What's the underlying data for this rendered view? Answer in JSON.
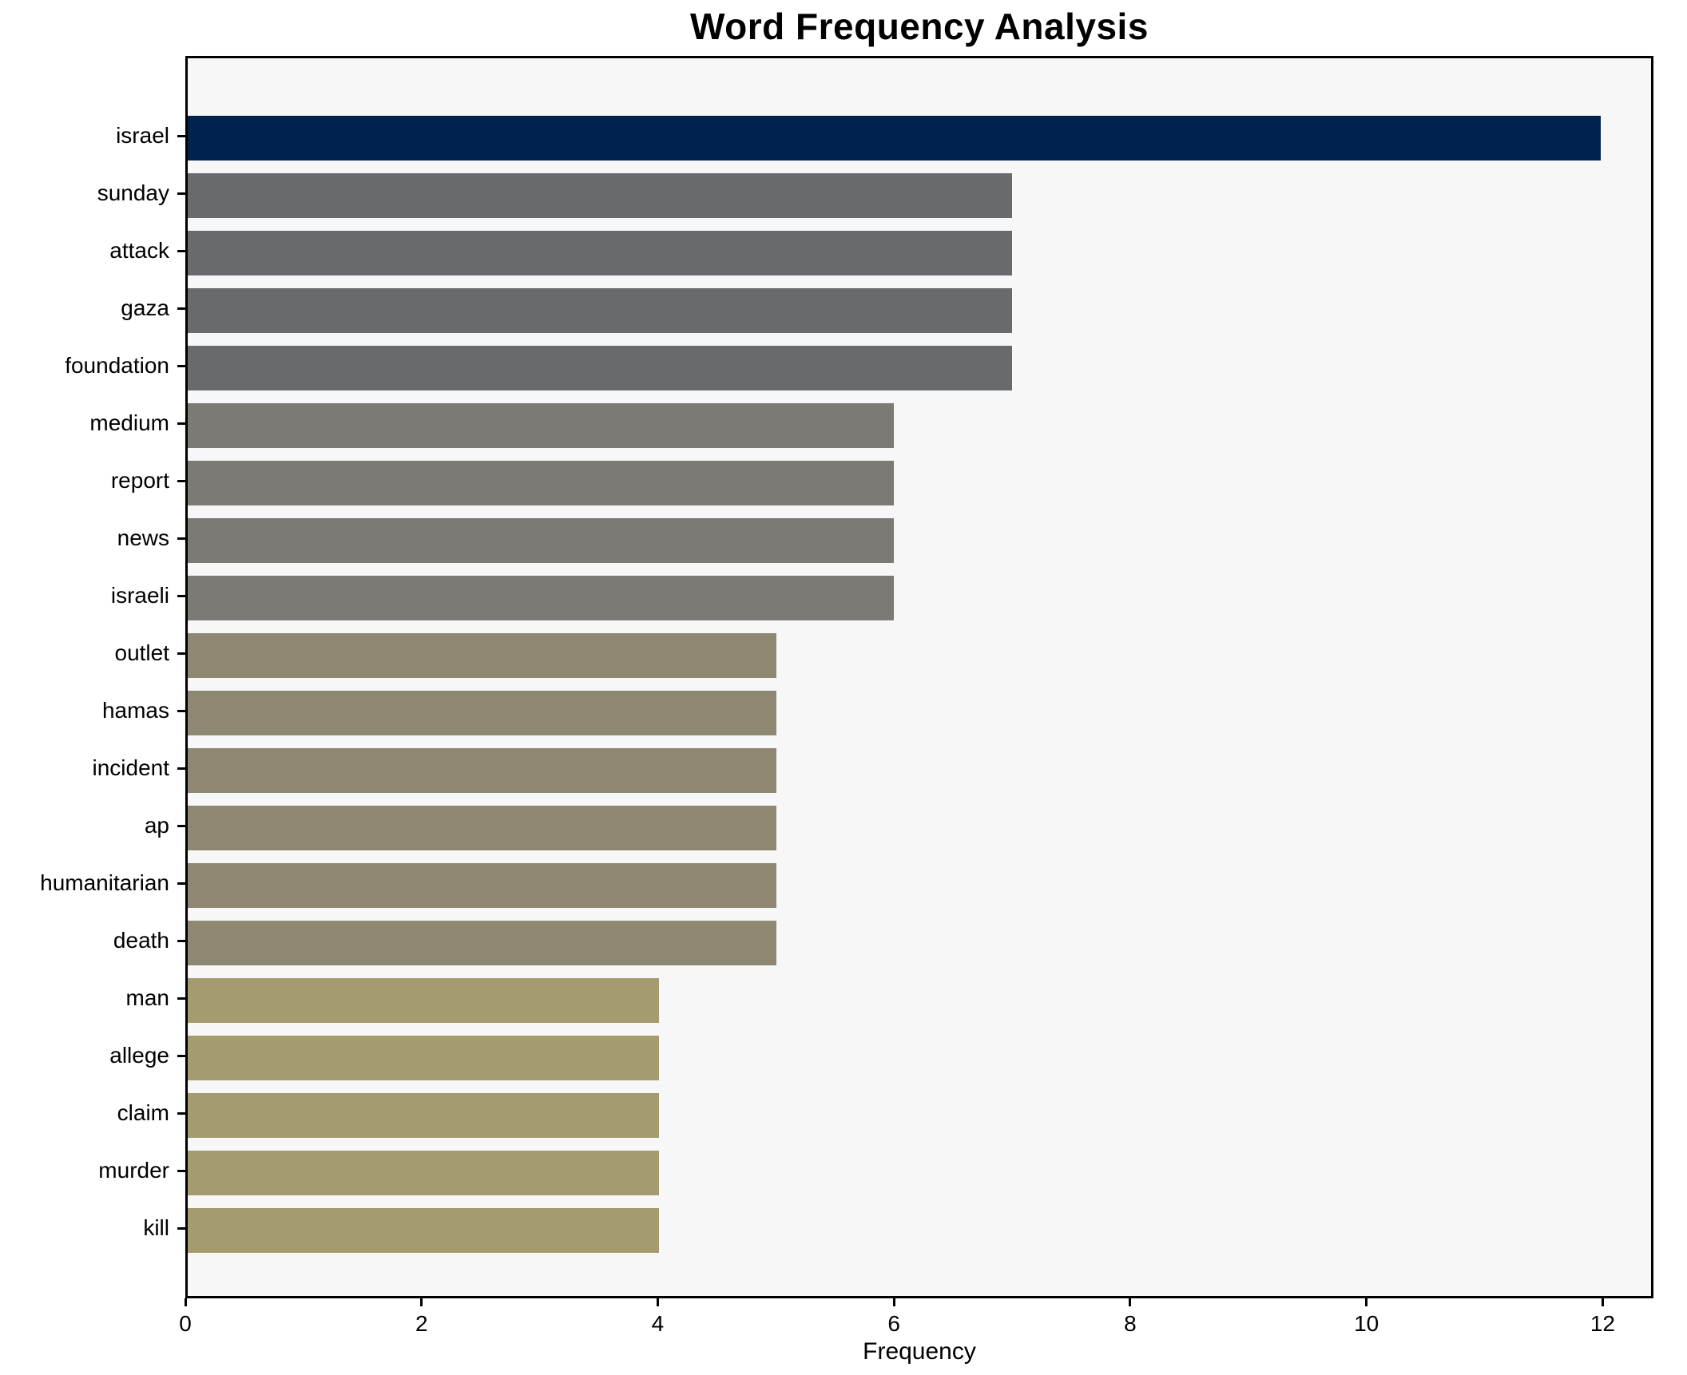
{
  "chart_data": {
    "type": "bar",
    "orientation": "horizontal",
    "title": "Word Frequency Analysis",
    "xlabel": "Frequency",
    "ylabel": "",
    "categories": [
      "israel",
      "sunday",
      "attack",
      "gaza",
      "foundation",
      "medium",
      "report",
      "news",
      "israeli",
      "outlet",
      "hamas",
      "incident",
      "ap",
      "humanitarian",
      "death",
      "man",
      "allege",
      "claim",
      "murder",
      "kill"
    ],
    "values": [
      12,
      7,
      7,
      7,
      7,
      6,
      6,
      6,
      6,
      5,
      5,
      5,
      5,
      5,
      5,
      4,
      4,
      4,
      4,
      4
    ],
    "bar_colors": [
      "#01224d",
      "#696a6e",
      "#696a6e",
      "#696a6e",
      "#696a6e",
      "#7b7a75",
      "#7b7a75",
      "#7b7a75",
      "#7b7a75",
      "#8e8873",
      "#8e8873",
      "#8e8873",
      "#8e8873",
      "#8e8873",
      "#8e8873",
      "#a49b6e",
      "#a49b6e",
      "#a49b6e",
      "#a49b6e",
      "#a49b6e"
    ],
    "xticks": [
      0,
      2,
      4,
      6,
      8,
      10,
      12
    ],
    "xlim": [
      0,
      12.43
    ],
    "grid": false,
    "legend_position": "none",
    "plot_background": "#f7f7f8",
    "figure_background": "#ffffff",
    "axis_color": "#000000"
  }
}
